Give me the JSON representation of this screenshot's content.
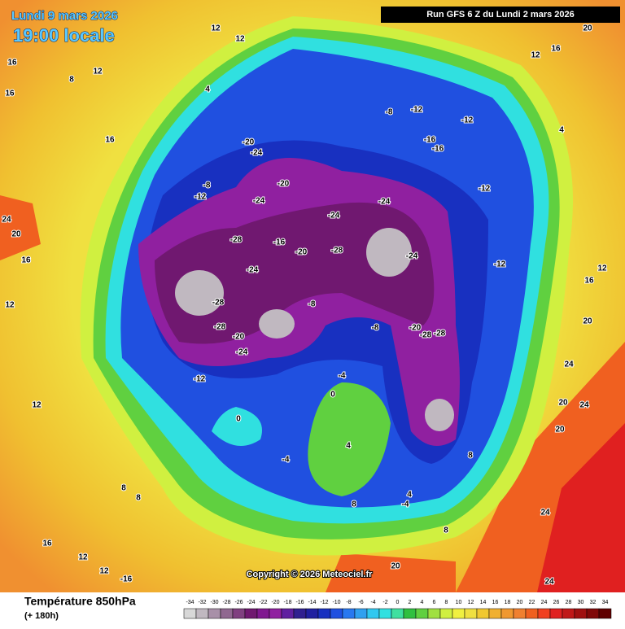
{
  "header": {
    "date": "Lundi 9 mars 2026",
    "time": "19:00 locale",
    "run": "Run GFS 6 Z du Lundi 2 mars 2026"
  },
  "copyright": "Copyright © 2026 Meteociel.fr",
  "legend": {
    "title": "Température 850hPa",
    "lead": "(+ 180h)",
    "scale": [
      -34,
      -32,
      -30,
      -28,
      -26,
      -24,
      -22,
      -20,
      -18,
      -16,
      -14,
      -12,
      -10,
      -8,
      -6,
      -4,
      -2,
      0,
      2,
      4,
      6,
      8,
      10,
      12,
      14,
      16,
      18,
      20,
      22,
      24,
      26,
      28,
      30,
      32,
      34
    ],
    "colors": [
      "#d8d8d8",
      "#c0b8c0",
      "#a890a8",
      "#906890",
      "#804080",
      "#701870",
      "#801890",
      "#9020a0",
      "#6020a0",
      "#302090",
      "#2020a0",
      "#1830c0",
      "#2050e0",
      "#2878f0",
      "#30a0f0",
      "#30c8f0",
      "#30e0e0",
      "#40e0a0",
      "#30c040",
      "#60d040",
      "#a0e040",
      "#d0f040",
      "#f0f040",
      "#f0e040",
      "#f0c830",
      "#f0b030",
      "#f09830",
      "#f08030",
      "#f06020",
      "#f04020",
      "#e02020",
      "#c01818",
      "#a01010",
      "#800808",
      "#600000"
    ]
  },
  "map_labels": [
    "12",
    "12",
    "16",
    "16",
    "12",
    "8",
    "4",
    "20",
    "16",
    "12",
    "4",
    "24",
    "20",
    "16",
    "12",
    "8",
    "12",
    "8",
    "16",
    "12",
    "16",
    "24",
    "20",
    "24",
    "24",
    "20",
    "20",
    "12",
    "-20",
    "-24",
    "-28",
    "-24",
    "-28",
    "-28",
    "-20",
    "-24",
    "-20",
    "-16",
    "-20",
    "-24",
    "-24",
    "-28",
    "-24",
    "-28",
    "-20",
    "-24",
    "-28",
    "-12",
    "-12",
    "-16",
    "-16",
    "-12",
    "-8",
    "-8",
    "-12",
    "-12",
    "-8",
    "-4",
    "-12",
    "-8",
    "0",
    "0",
    "-4",
    "4",
    "8",
    "4",
    "8",
    "-4",
    "8",
    "-16",
    "12",
    "16",
    "20",
    "24",
    "20"
  ]
}
